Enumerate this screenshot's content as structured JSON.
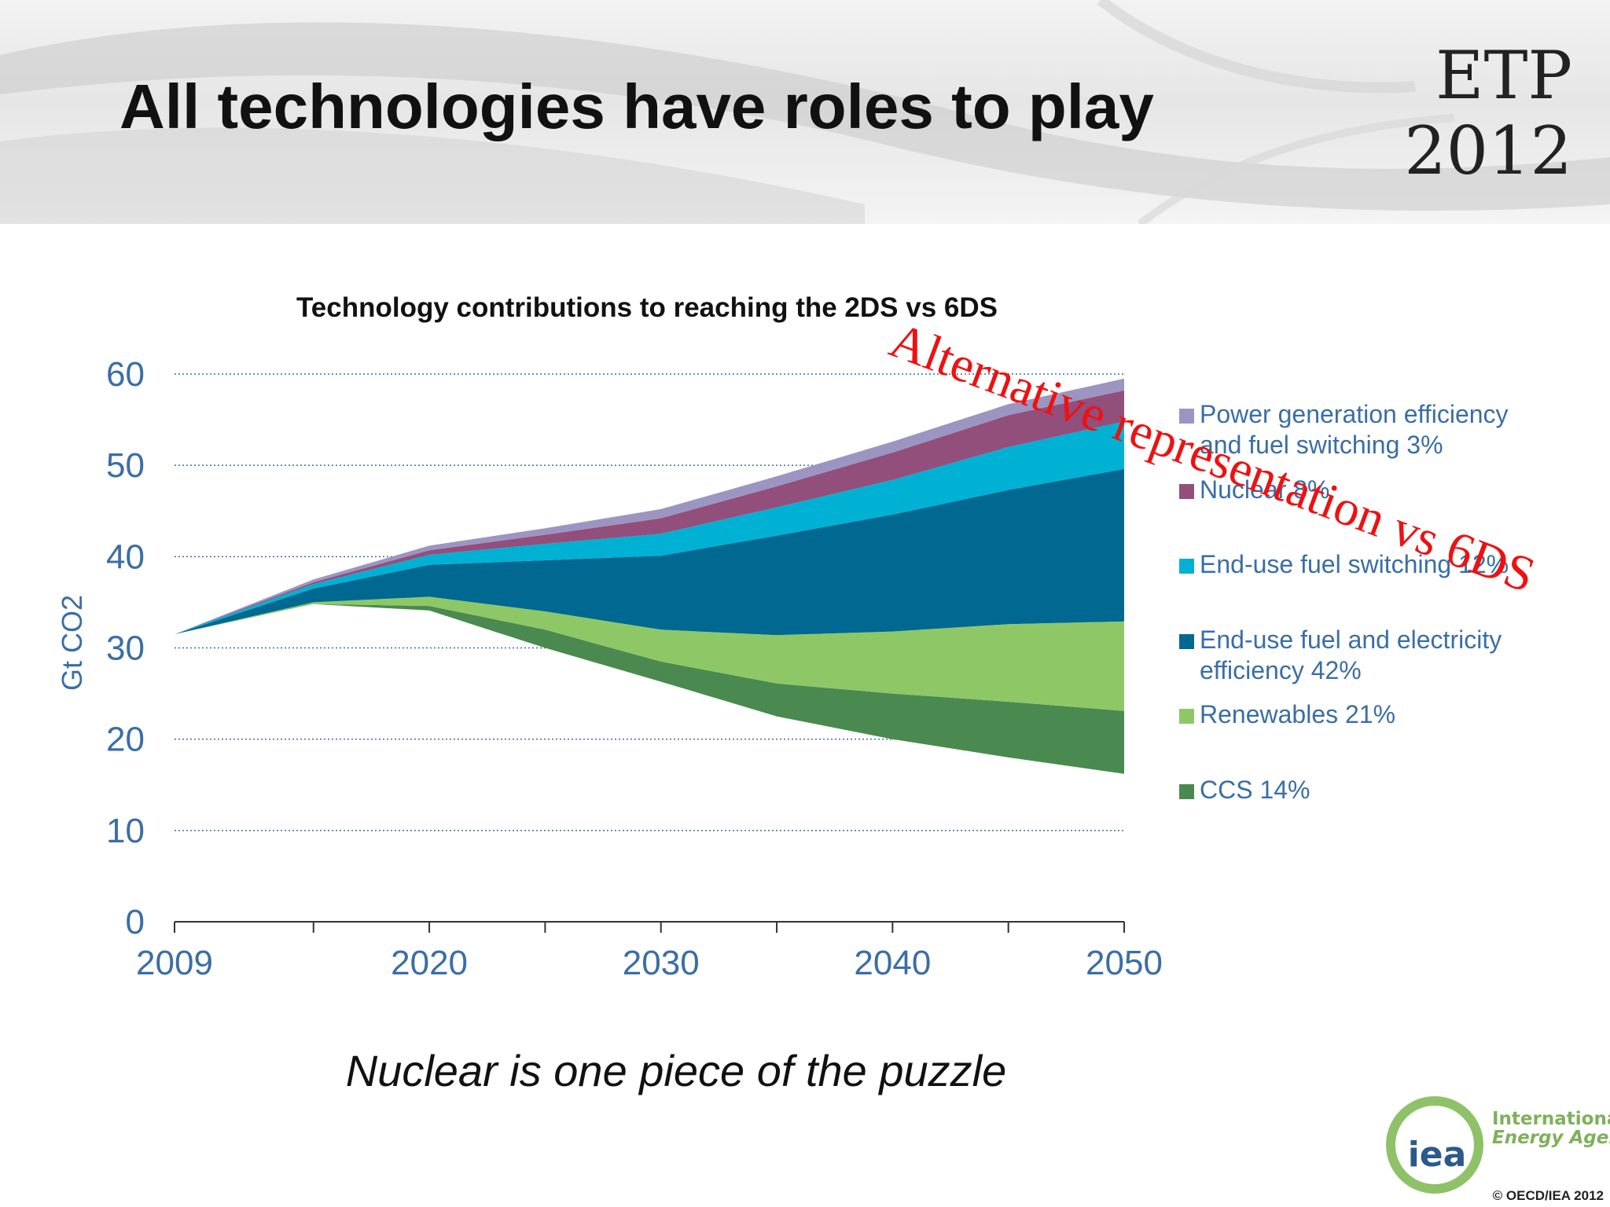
{
  "slide": {
    "title": "All technologies have roles to play",
    "badge_line1": "ETP",
    "badge_line2": "2012",
    "caption": "Nuclear is one piece of the puzzle",
    "footer_org_line1": "International",
    "footer_org_line2": "Energy Agency",
    "footer_logo_text": "iea",
    "copyright": "© OECD/IEA 2012"
  },
  "chart_data": {
    "type": "area",
    "title": "Technology contributions to reaching the 2DS vs 6DS",
    "ylabel": "Gt CO2",
    "xlabel": "",
    "ylim": [
      0,
      60
    ],
    "yticks": [
      0,
      10,
      20,
      30,
      40,
      50,
      60
    ],
    "xlim": [
      2009,
      2050
    ],
    "xtick_labels": [
      2009,
      2020,
      2030,
      2040,
      2050
    ],
    "x_minor_ticks": [
      2009,
      2015,
      2020,
      2025,
      2030,
      2035,
      2040,
      2045,
      2050
    ],
    "grid": "horizontal dotted",
    "legend_position": "right",
    "annotation": "Alternative representation vs 6DS",
    "annotation_color": "#ee1111",
    "x": [
      2009,
      2015,
      2020,
      2025,
      2030,
      2035,
      2040,
      2045,
      2050
    ],
    "baseline": [
      31.5,
      34.8,
      34.1,
      30.0,
      26.3,
      22.5,
      20.0,
      18.0,
      16.2
    ],
    "series": [
      {
        "name": "CCS 14%",
        "color": "#4a8a50",
        "values": [
          0,
          0,
          0.5,
          2.0,
          2.2,
          3.6,
          5.0,
          6.1,
          6.9
        ]
      },
      {
        "name": "Renewables 21%",
        "color": "#8ec866",
        "values": [
          0,
          0.2,
          1.0,
          2.0,
          3.5,
          5.3,
          6.8,
          8.5,
          9.8
        ]
      },
      {
        "name": "End-use fuel and electricity efficiency 42%",
        "color": "#006891",
        "values": [
          0,
          1.5,
          3.5,
          5.6,
          8.1,
          10.9,
          12.8,
          14.7,
          16.7
        ]
      },
      {
        "name": "End-use fuel switching 12%",
        "color": "#00b1d3",
        "values": [
          0,
          0.5,
          1.1,
          1.8,
          2.4,
          3.1,
          3.8,
          4.7,
          5.2
        ]
      },
      {
        "name": "Nuclear 8%",
        "color": "#924f7c",
        "values": [
          0,
          0.2,
          0.5,
          1.0,
          1.7,
          2.3,
          3.0,
          3.5,
          3.4
        ]
      },
      {
        "name": "Power generation efficiency and fuel switching 3%",
        "color": "#9c95c2",
        "values": [
          0,
          0.3,
          0.5,
          0.7,
          1.0,
          1.1,
          1.2,
          1.2,
          1.3
        ]
      }
    ]
  }
}
